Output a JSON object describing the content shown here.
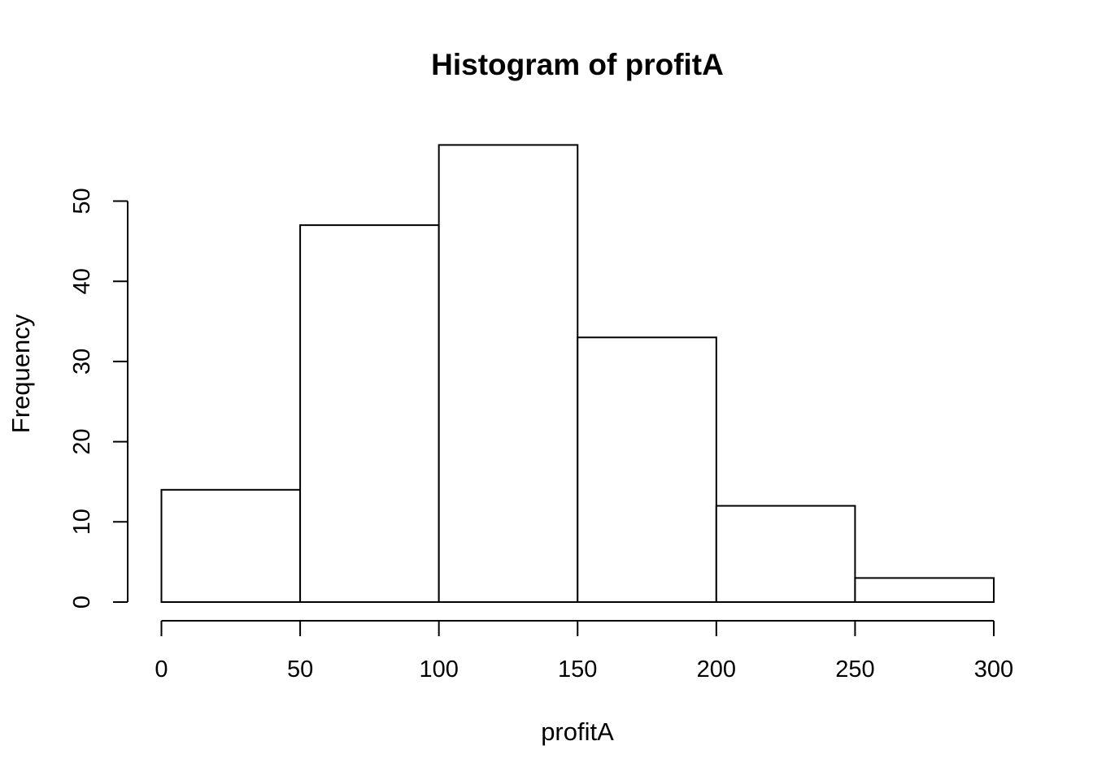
{
  "chart_data": {
    "type": "bar",
    "title": "Histogram of profitA",
    "xlabel": "profitA",
    "ylabel": "Frequency",
    "bins": [
      {
        "from": 0,
        "to": 50,
        "count": 14
      },
      {
        "from": 50,
        "to": 100,
        "count": 47
      },
      {
        "from": 100,
        "to": 150,
        "count": 57
      },
      {
        "from": 150,
        "to": 200,
        "count": 33
      },
      {
        "from": 200,
        "to": 250,
        "count": 12
      },
      {
        "from": 250,
        "to": 300,
        "count": 3
      }
    ],
    "xticks": [
      0,
      50,
      100,
      150,
      200,
      250,
      300
    ],
    "yticks": [
      0,
      10,
      20,
      30,
      40,
      50
    ],
    "xlim": [
      0,
      300
    ],
    "ylim": [
      0,
      57
    ],
    "grid": false,
    "legend": "none",
    "bar_fill": "#ffffff",
    "bar_stroke": "#000000"
  }
}
